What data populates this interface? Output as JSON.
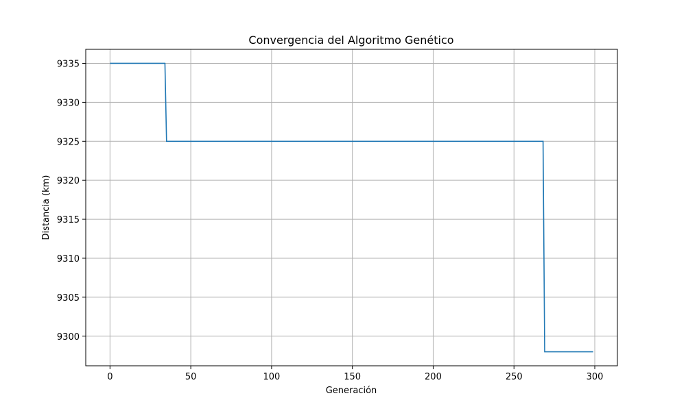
{
  "chart_data": {
    "type": "line",
    "title": "Convergencia del Algoritmo Genético",
    "xlabel": "Generación",
    "ylabel": "Distancia (km)",
    "xlim": [
      -15,
      314
    ],
    "ylim": [
      9296.2,
      9336.8
    ],
    "xticks": [
      0,
      50,
      100,
      150,
      200,
      250,
      300
    ],
    "yticks": [
      9300,
      9305,
      9310,
      9315,
      9320,
      9325,
      9330,
      9335
    ],
    "grid": true,
    "series": [
      {
        "color": "#1f77b4",
        "points": [
          [
            0,
            9335
          ],
          [
            34,
            9335
          ],
          [
            35,
            9325
          ],
          [
            268,
            9325
          ],
          [
            269,
            9298
          ],
          [
            299,
            9298
          ]
        ]
      }
    ]
  }
}
